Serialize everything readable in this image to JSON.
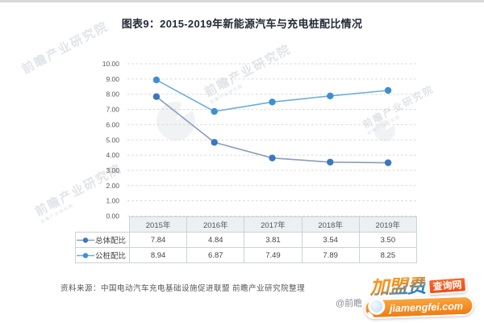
{
  "title": "图表9：2015-2019年新能源汽车与充电桩配比情况",
  "chart_data": {
    "type": "line",
    "title": "图表9：2015-2019年新能源汽车与充电桩配比情况",
    "categories": [
      "2015年",
      "2016年",
      "2017年",
      "2018年",
      "2019年"
    ],
    "series": [
      {
        "name": "总体配比",
        "values": [
          7.84,
          4.84,
          3.81,
          3.54,
          3.5
        ],
        "labels": [
          "7.84",
          "4.84",
          "3.81",
          "3.54",
          "3.50"
        ],
        "line_color": "#8b9cbd",
        "marker_color": "#3b76c4"
      },
      {
        "name": "公桩配比",
        "values": [
          8.94,
          6.87,
          7.49,
          7.89,
          8.25
        ],
        "labels": [
          "8.94",
          "6.87",
          "7.49",
          "7.89",
          "8.25"
        ],
        "line_color": "#6aaede",
        "marker_color": "#3f8fd2"
      }
    ],
    "ylim": [
      0,
      10
    ],
    "y_ticks": [
      "0.00",
      "1.00",
      "2.00",
      "3.00",
      "4.00",
      "5.00",
      "6.00",
      "7.00",
      "8.00",
      "9.00",
      "10.00"
    ],
    "grid": "horizontal-dashed",
    "legend_position": "table-left",
    "gridline_color": "#d8d8d8"
  },
  "source_note": "资料来源：中国电动汽车充电基础设施促进联盟 前瞻产业研究院整理",
  "watermark": {
    "text": "前瞻产业研究院",
    "handle_text": "@前瞻"
  },
  "logo": {
    "line1_main": "加盟费",
    "line1_badge": "查询网",
    "line2": "jiamengfei.com",
    "colors": {
      "orange": "#f7931e",
      "blue": "#1d7fd0",
      "badge_red": "#ee4d1a"
    }
  }
}
